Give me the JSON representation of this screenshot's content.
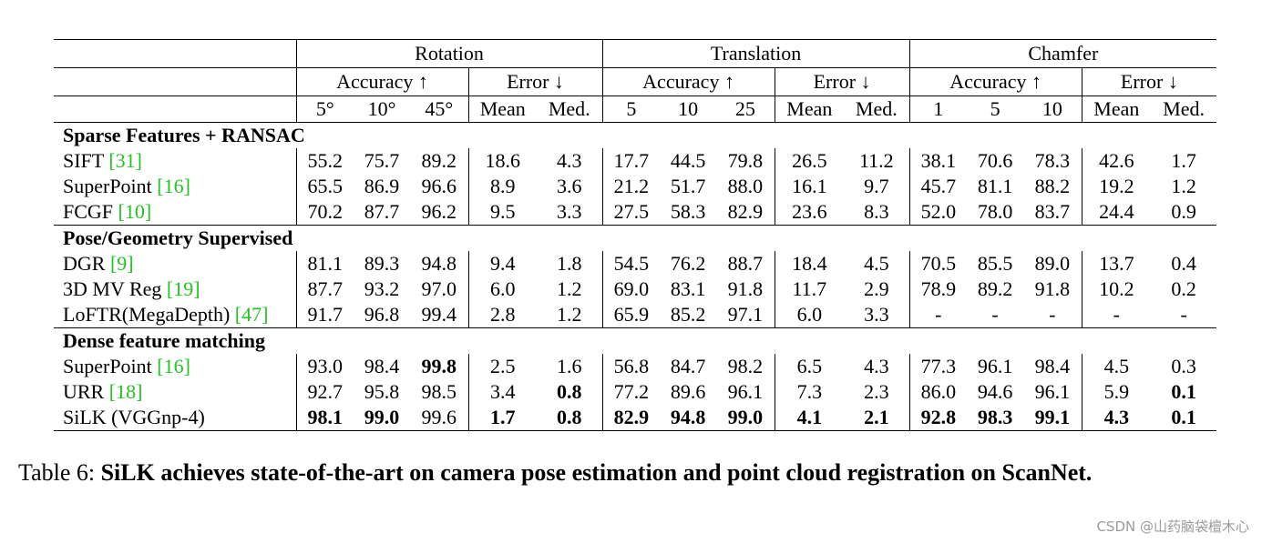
{
  "header": {
    "groups": [
      "Rotation",
      "Translation",
      "Chamfer"
    ],
    "subgroups": [
      "Accuracy ↑",
      "Error ↓",
      "Accuracy ↑",
      "Error ↓",
      "Accuracy ↑",
      "Error ↓"
    ],
    "columns": [
      "5°",
      "10°",
      "45°",
      "Mean",
      "Med.",
      "5",
      "10",
      "25",
      "Mean",
      "Med.",
      "1",
      "5",
      "10",
      "Mean",
      "Med."
    ]
  },
  "sections": [
    {
      "title": "Sparse Features + RANSAC",
      "rows": [
        {
          "name": "SIFT ",
          "ref": "[31]",
          "values": [
            "55.2",
            "75.7",
            "89.2",
            "18.6",
            "4.3",
            "17.7",
            "44.5",
            "79.8",
            "26.5",
            "11.2",
            "38.1",
            "70.6",
            "78.3",
            "42.6",
            "1.7"
          ]
        },
        {
          "name": "SuperPoint ",
          "ref": "[16]",
          "values": [
            "65.5",
            "86.9",
            "96.6",
            "8.9",
            "3.6",
            "21.2",
            "51.7",
            "88.0",
            "16.1",
            "9.7",
            "45.7",
            "81.1",
            "88.2",
            "19.2",
            "1.2"
          ]
        },
        {
          "name": "FCGF ",
          "ref": "[10]",
          "values": [
            "70.2",
            "87.7",
            "96.2",
            "9.5",
            "3.3",
            "27.5",
            "58.3",
            "82.9",
            "23.6",
            "8.3",
            "52.0",
            "78.0",
            "83.7",
            "24.4",
            "0.9"
          ]
        }
      ]
    },
    {
      "title": "Pose/Geometry Supervised",
      "rows": [
        {
          "name": "DGR ",
          "ref": "[9]",
          "values": [
            "81.1",
            "89.3",
            "94.8",
            "9.4",
            "1.8",
            "54.5",
            "76.2",
            "88.7",
            "18.4",
            "4.5",
            "70.5",
            "85.5",
            "89.0",
            "13.7",
            "0.4"
          ]
        },
        {
          "name": "3D MV Reg ",
          "ref": "[19]",
          "values": [
            "87.7",
            "93.2",
            "97.0",
            "6.0",
            "1.2",
            "69.0",
            "83.1",
            "91.8",
            "11.7",
            "2.9",
            "78.9",
            "89.2",
            "91.8",
            "10.2",
            "0.2"
          ]
        },
        {
          "name": "LoFTR(MegaDepth) ",
          "ref": "[47]",
          "values": [
            "91.7",
            "96.8",
            "99.4",
            "2.8",
            "1.2",
            "65.9",
            "85.2",
            "97.1",
            "6.0",
            "3.3",
            "-",
            "-",
            "-",
            "-",
            "-"
          ]
        }
      ]
    },
    {
      "title": "Dense feature matching",
      "rows": [
        {
          "name": "SuperPoint ",
          "ref": "[16]",
          "values": [
            "93.0",
            "98.4",
            "99.8",
            "2.5",
            "1.6",
            "56.8",
            "84.7",
            "98.2",
            "6.5",
            "4.3",
            "77.3",
            "96.1",
            "98.4",
            "4.5",
            "0.3"
          ],
          "bold": [
            2
          ]
        },
        {
          "name": "URR ",
          "ref": "[18]",
          "values": [
            "92.7",
            "95.8",
            "98.5",
            "3.4",
            "0.8",
            "77.2",
            "89.6",
            "96.1",
            "7.3",
            "2.3",
            "86.0",
            "94.6",
            "96.1",
            "5.9",
            "0.1"
          ],
          "bold": [
            4,
            14
          ]
        },
        {
          "name": "SiLK (VGGnp-4)",
          "ref": "",
          "values": [
            "98.1",
            "99.0",
            "99.6",
            "1.7",
            "0.8",
            "82.9",
            "94.8",
            "99.0",
            "4.1",
            "2.1",
            "92.8",
            "98.3",
            "99.1",
            "4.3",
            "0.1"
          ],
          "bold": [
            0,
            1,
            3,
            4,
            5,
            6,
            7,
            8,
            9,
            10,
            11,
            12,
            13,
            14
          ]
        }
      ]
    }
  ],
  "caption": {
    "label": "Table 6: ",
    "text": "SiLK achieves state-of-the-art on camera pose estimation and point cloud registration on ScanNet."
  },
  "watermark": "CSDN @山药脑袋檀木心"
}
